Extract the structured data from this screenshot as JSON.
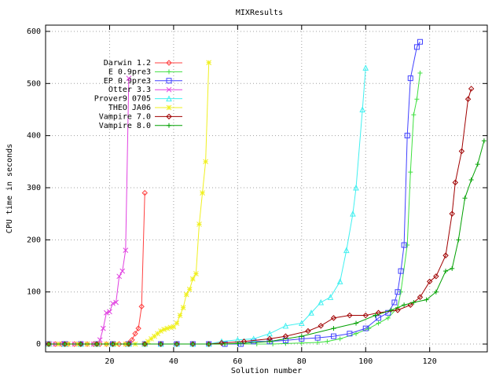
{
  "chart_data": {
    "type": "line",
    "title": "MIXResults",
    "xlabel": "Solution number",
    "ylabel": "CPU time in seconds",
    "xlim": [
      0,
      138
    ],
    "ylim": [
      -15,
      612
    ],
    "xticks": [
      20,
      40,
      60,
      80,
      100,
      120
    ],
    "yticks": [
      0,
      100,
      200,
      300,
      400,
      500,
      600
    ],
    "grid": true,
    "legend": "upper left",
    "series": [
      {
        "name": "Darwin 1.2",
        "color": "#ff4040",
        "marker": "diamond",
        "x": [
          1,
          3,
          5,
          7,
          9,
          11,
          13,
          15,
          17,
          19,
          21,
          23,
          25,
          26,
          27,
          28,
          29,
          30,
          31
        ],
        "values": [
          0,
          0,
          0,
          0,
          0,
          0,
          0,
          0,
          0,
          0,
          0,
          0,
          0,
          2,
          8,
          20,
          30,
          72,
          290
        ]
      },
      {
        "name": "E 0.9pre3",
        "color": "#40e040",
        "marker": "plus",
        "x": [
          1,
          6,
          11,
          16,
          21,
          26,
          31,
          36,
          41,
          46,
          51,
          56,
          61,
          66,
          71,
          75,
          80,
          85,
          88,
          92,
          97,
          101,
          104,
          107,
          110,
          111,
          113,
          114,
          115,
          116,
          117
        ],
        "values": [
          0,
          0,
          0,
          0,
          0,
          0,
          0,
          0,
          0,
          0,
          0,
          0,
          0,
          0,
          0,
          1,
          2,
          3,
          5,
          10,
          20,
          30,
          40,
          50,
          70,
          100,
          190,
          330,
          440,
          470,
          520
        ]
      },
      {
        "name": "EP 0.9pre3",
        "color": "#4040ff",
        "marker": "square",
        "x": [
          1,
          6,
          11,
          16,
          21,
          26,
          31,
          36,
          41,
          46,
          51,
          56,
          61,
          65,
          70,
          75,
          80,
          85,
          90,
          95,
          100,
          104,
          107,
          109,
          110,
          111,
          112,
          113,
          114,
          116,
          117
        ],
        "values": [
          0,
          0,
          0,
          0,
          0,
          0,
          0,
          0,
          0,
          0,
          0,
          0,
          0,
          5,
          5,
          7,
          10,
          12,
          15,
          20,
          30,
          50,
          60,
          80,
          100,
          140,
          190,
          400,
          510,
          570,
          580
        ]
      },
      {
        "name": "Otter 3.3",
        "color": "#e040e0",
        "marker": "cross",
        "x": [
          1,
          3,
          5,
          7,
          9,
          11,
          13,
          15,
          16,
          17,
          18,
          19,
          20,
          21,
          22,
          23,
          24,
          25,
          26
        ],
        "values": [
          0,
          0,
          0,
          0,
          0,
          0,
          0,
          0,
          0,
          8,
          30,
          60,
          62,
          78,
          80,
          130,
          140,
          180,
          510
        ]
      },
      {
        "name": "Prover9 0705",
        "color": "#40f0f0",
        "marker": "triangle",
        "x": [
          1,
          6,
          11,
          16,
          21,
          26,
          31,
          36,
          41,
          46,
          51,
          55,
          60,
          65,
          70,
          75,
          80,
          83,
          86,
          89,
          92,
          94,
          96,
          97,
          99,
          100
        ],
        "values": [
          0,
          0,
          0,
          0,
          0,
          0,
          0,
          0,
          0,
          0,
          0,
          5,
          8,
          10,
          20,
          35,
          40,
          60,
          80,
          90,
          120,
          180,
          250,
          300,
          450,
          530
        ]
      },
      {
        "name": "THEO JA06",
        "color": "#f0f020",
        "marker": "star",
        "x": [
          1,
          4,
          7,
          10,
          13,
          16,
          19,
          22,
          25,
          28,
          31,
          32,
          33,
          34,
          35,
          36,
          37,
          38,
          39,
          40,
          41,
          42,
          43,
          44,
          45,
          46,
          47,
          48,
          49,
          50,
          51
        ],
        "values": [
          0,
          0,
          0,
          0,
          0,
          0,
          0,
          0,
          0,
          0,
          0,
          5,
          10,
          15,
          20,
          25,
          28,
          30,
          32,
          33,
          40,
          55,
          70,
          95,
          105,
          125,
          135,
          230,
          290,
          350,
          540
        ]
      },
      {
        "name": "Vampire 7.0",
        "color": "#a00000",
        "marker": "diamond",
        "x": [
          1,
          6,
          11,
          16,
          21,
          26,
          31,
          36,
          41,
          46,
          51,
          55,
          62,
          70,
          75,
          82,
          86,
          90,
          95,
          100,
          104,
          110,
          114,
          117,
          120,
          122,
          125,
          127,
          128,
          130,
          132,
          133
        ],
        "values": [
          0,
          0,
          0,
          0,
          0,
          0,
          0,
          0,
          0,
          0,
          0,
          2,
          5,
          10,
          15,
          25,
          35,
          50,
          55,
          55,
          60,
          65,
          75,
          90,
          120,
          130,
          170,
          250,
          310,
          370,
          470,
          490
        ]
      },
      {
        "name": "Vampire 8.0",
        "color": "#00a000",
        "marker": "plus",
        "x": [
          1,
          6,
          11,
          16,
          21,
          26,
          31,
          36,
          41,
          46,
          51,
          56,
          60,
          70,
          80,
          90,
          97,
          103,
          108,
          112,
          115,
          119,
          122,
          125,
          127,
          129,
          131,
          133,
          135,
          137
        ],
        "values": [
          0,
          0,
          0,
          0,
          0,
          0,
          0,
          0,
          0,
          0,
          0,
          0,
          1,
          5,
          15,
          30,
          40,
          55,
          65,
          75,
          80,
          85,
          100,
          140,
          145,
          200,
          280,
          315,
          345,
          390
        ]
      }
    ]
  }
}
